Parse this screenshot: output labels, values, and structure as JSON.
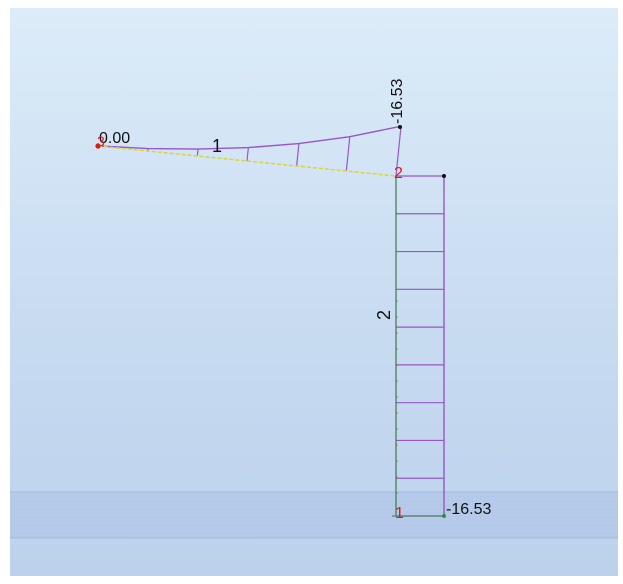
{
  "diagram": {
    "labels": {
      "beam_start_value": "0.00",
      "beam_end_value": "-16.53",
      "column_base_value": "-16.53",
      "member_beam": "1",
      "member_column": "2",
      "node_beam_start": "3",
      "node_top": "2",
      "node_base": "1"
    },
    "colors": {
      "diagram_line": "#9a55c8",
      "member_line": "#d8d830",
      "node_label": "#e01818",
      "value_label": "#111111",
      "background_top": "#dcecf9",
      "background_bottom": "#bcd2ec",
      "ground_band": "#b6cbea"
    },
    "beam_diagram_fractions": [
      0.0,
      0.05,
      0.14,
      0.27,
      0.45,
      0.69,
      1.0
    ],
    "column_diagram_fractions": [
      1.0,
      1.0,
      1.0,
      1.0,
      1.0,
      1.0,
      1.0,
      1.0,
      1.0,
      1.0
    ]
  }
}
